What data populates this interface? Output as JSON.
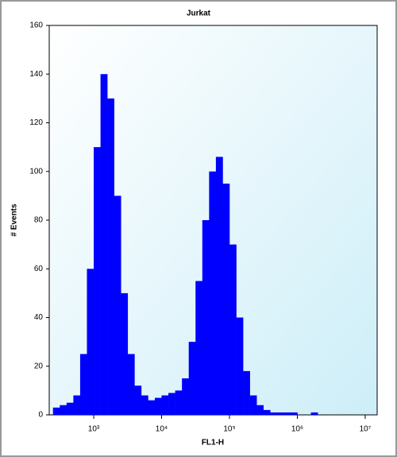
{
  "chart_data": {
    "type": "histogram",
    "title": "Jurkat",
    "x_label": "FL1-H",
    "y_label": "# Events",
    "color": "#0000ff",
    "x_log": true,
    "bins": [
      251,
      316,
      398,
      501,
      631,
      794,
      1000,
      1259,
      1585,
      1995,
      2512,
      3162,
      3981,
      5012,
      6310,
      7943,
      10000,
      12589,
      15849,
      19953,
      25119,
      31623,
      39811,
      50119,
      63096,
      79433,
      100000,
      125893,
      158489,
      199526,
      251189,
      316228,
      398107,
      501187,
      630957,
      794328,
      1000000,
      1258925,
      1584893,
      1995262,
      2511886,
      3162278,
      3981072,
      5011872,
      6309573,
      7943282,
      10000000,
      12589254
    ],
    "values": [
      3,
      4,
      5,
      8,
      25,
      60,
      110,
      140,
      130,
      90,
      50,
      25,
      12,
      8,
      6,
      7,
      8,
      9,
      10,
      15,
      30,
      55,
      80,
      100,
      106,
      95,
      70,
      40,
      18,
      8,
      4,
      2,
      1,
      1,
      1,
      1,
      0,
      0,
      1,
      0,
      0,
      0,
      0,
      0,
      0,
      0,
      0
    ],
    "xlim": [
      221,
      15000000
    ],
    "xticks": [
      {
        "value": 1000,
        "label": "10³"
      },
      {
        "value": 10000,
        "label": "10⁴"
      },
      {
        "value": 100000,
        "label": "10⁵"
      },
      {
        "value": 1000000,
        "label": "10⁶"
      },
      {
        "value": 10000000,
        "label": "10⁷"
      }
    ],
    "ylim": [
      0,
      160
    ],
    "yticks": [
      0,
      20,
      40,
      60,
      80,
      100,
      120,
      140,
      160
    ]
  }
}
